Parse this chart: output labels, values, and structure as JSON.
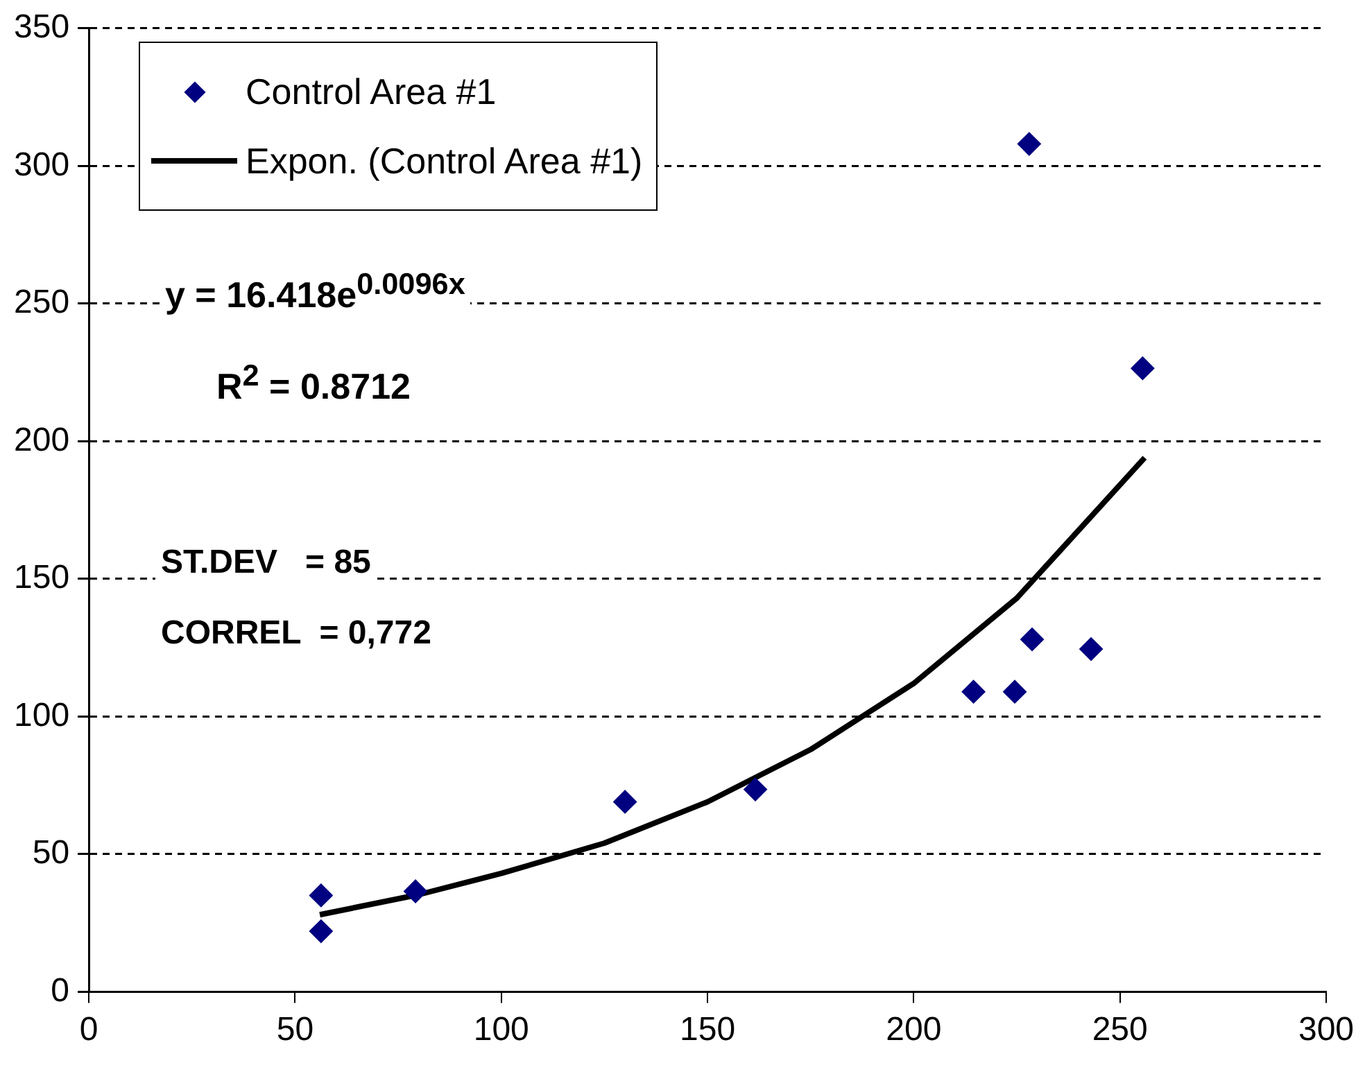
{
  "chart_data": {
    "type": "scatter",
    "legend": "top left",
    "grid": "y",
    "marker": "diamond",
    "line_style": "solid",
    "xlim": [
      0,
      300
    ],
    "xticks": [
      0,
      50,
      100,
      150,
      200,
      250,
      300
    ],
    "ylim": [
      0,
      350
    ],
    "yticks": [
      0,
      50,
      100,
      150,
      200,
      250,
      300,
      350
    ],
    "series": [
      {
        "name": "Control Area #1",
        "color": "#000080",
        "x": [
          56.3,
          56.3,
          79.2,
          130,
          161.6,
          214.5,
          224.5,
          228.7,
          243,
          228,
          255.5
        ],
        "values": [
          35,
          22,
          36.5,
          69,
          73.5,
          109,
          109,
          128,
          124.5,
          308,
          226.5
        ]
      },
      {
        "name": "Expon. (Control Area #1)",
        "color": "#000000",
        "type": "line",
        "marker": "none",
        "x": [
          56,
          80,
          100,
          125,
          150,
          175,
          200,
          225,
          256
        ],
        "values": [
          28,
          35.3,
          43,
          54,
          69,
          88,
          112,
          143,
          194
        ]
      }
    ],
    "annotations": [
      "y = 16.418e$^{0.0096x}$",
      "R$^{2}$ = 0.8712",
      "ST.DEV   = 85",
      "CORREL  = 0,772"
    ]
  }
}
